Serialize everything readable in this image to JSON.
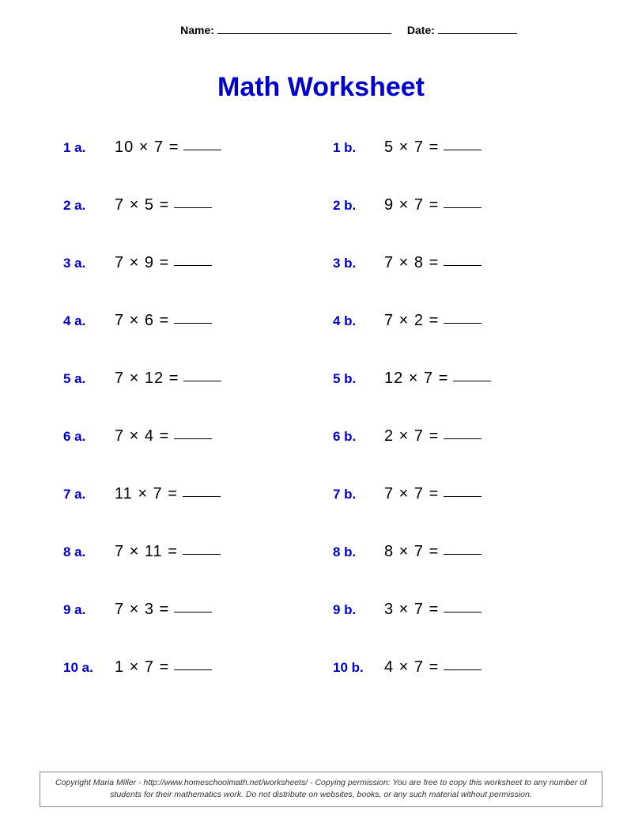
{
  "header": {
    "name_label": "Name:",
    "date_label": "Date:"
  },
  "title": "Math Worksheet",
  "colors": {
    "title_color": "#0000cc",
    "label_color": "#0000cc",
    "text_color": "#000000",
    "background": "#ffffff",
    "footer_border": "#888888"
  },
  "typography": {
    "title_fontsize": 34,
    "label_fontsize": 17,
    "expr_fontsize": 20,
    "header_fontsize": 14,
    "footer_fontsize": 10.5
  },
  "layout": {
    "columns": 2,
    "rows": 10,
    "row_gap": 50
  },
  "problems": [
    {
      "label": "1 a.",
      "a": 10,
      "b": 7
    },
    {
      "label": "1 b.",
      "a": 5,
      "b": 7
    },
    {
      "label": "2 a.",
      "a": 7,
      "b": 5
    },
    {
      "label": "2 b.",
      "a": 9,
      "b": 7
    },
    {
      "label": "3 a.",
      "a": 7,
      "b": 9
    },
    {
      "label": "3 b.",
      "a": 7,
      "b": 8
    },
    {
      "label": "4 a.",
      "a": 7,
      "b": 6
    },
    {
      "label": "4 b.",
      "a": 7,
      "b": 2
    },
    {
      "label": "5 a.",
      "a": 7,
      "b": 12
    },
    {
      "label": "5 b.",
      "a": 12,
      "b": 7
    },
    {
      "label": "6 a.",
      "a": 7,
      "b": 4
    },
    {
      "label": "6 b.",
      "a": 2,
      "b": 7
    },
    {
      "label": "7 a.",
      "a": 11,
      "b": 7
    },
    {
      "label": "7 b.",
      "a": 7,
      "b": 7
    },
    {
      "label": "8 a.",
      "a": 7,
      "b": 11
    },
    {
      "label": "8 b.",
      "a": 8,
      "b": 7
    },
    {
      "label": "9 a.",
      "a": 7,
      "b": 3
    },
    {
      "label": "9 b.",
      "a": 3,
      "b": 7
    },
    {
      "label": "10 a.",
      "a": 1,
      "b": 7
    },
    {
      "label": "10 b.",
      "a": 4,
      "b": 7
    }
  ],
  "operator": "×",
  "equals": "=",
  "footer": "Copyright Maria Miller - http://www.homeschoolmath.net/worksheets/ - Copying permission: You are free to copy this worksheet to any number of students for their mathematics work. Do not distribute on websites, books, or any such material without permission."
}
